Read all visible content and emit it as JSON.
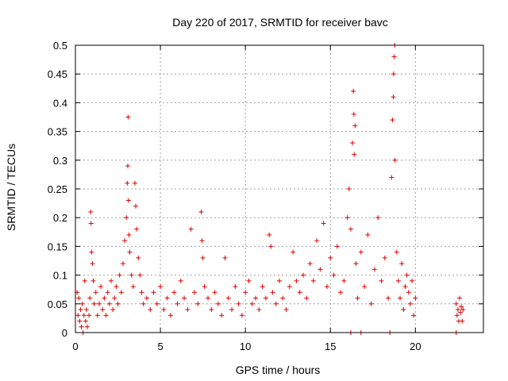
{
  "chart_data": {
    "type": "scatter",
    "title": "Day 220 of 2017, SRMTID for receiver bavc",
    "xlabel": "GPS time / hours",
    "ylabel": "SRMTID / TECUs",
    "xlim": [
      0,
      24
    ],
    "ylim": [
      0,
      0.5
    ],
    "xticks": [
      0,
      5,
      10,
      15,
      20
    ],
    "yticks": [
      0,
      0.05,
      0.1,
      0.15,
      0.2,
      0.25,
      0.3,
      0.35,
      0.4,
      0.45,
      0.5
    ],
    "xtick_labels": [
      "0",
      "5",
      "10",
      "15",
      "20"
    ],
    "ytick_labels": [
      "0",
      "0.05",
      "0.1",
      "0.15",
      "0.2",
      "0.25",
      "0.3",
      "0.35",
      "0.4",
      "0.45",
      "0.5"
    ],
    "grid": true,
    "marker": "+",
    "series": [
      {
        "name": "SRMTID",
        "color": "#e00000",
        "points": [
          [
            0.1,
            0.07
          ],
          [
            0.15,
            0.03
          ],
          [
            0.2,
            0.06
          ],
          [
            0.25,
            0.02
          ],
          [
            0.3,
            0.04
          ],
          [
            0.35,
            0.01
          ],
          [
            0.4,
            0.05
          ],
          [
            0.45,
            0.0
          ],
          [
            0.5,
            0.03
          ],
          [
            0.55,
            0.09
          ],
          [
            0.6,
            0.02
          ],
          [
            0.65,
            0.04
          ],
          [
            0.7,
            0.01
          ],
          [
            0.8,
            0.03
          ],
          [
            0.85,
            0.06
          ],
          [
            0.9,
            0.21
          ],
          [
            0.92,
            0.19
          ],
          [
            0.95,
            0.14
          ],
          [
            1.0,
            0.12
          ],
          [
            1.05,
            0.09
          ],
          [
            1.1,
            0.05
          ],
          [
            1.2,
            0.07
          ],
          [
            1.3,
            0.03
          ],
          [
            1.4,
            0.05
          ],
          [
            1.5,
            0.08
          ],
          [
            1.6,
            0.04
          ],
          [
            1.7,
            0.06
          ],
          [
            1.8,
            0.03
          ],
          [
            1.9,
            0.07
          ],
          [
            2.0,
            0.05
          ],
          [
            2.1,
            0.09
          ],
          [
            2.2,
            0.04
          ],
          [
            2.3,
            0.06
          ],
          [
            2.4,
            0.08
          ],
          [
            2.5,
            0.05
          ],
          [
            2.6,
            0.1
          ],
          [
            2.7,
            0.07
          ],
          [
            2.8,
            0.12
          ],
          [
            2.9,
            0.16
          ],
          [
            3.0,
            0.2
          ],
          [
            3.05,
            0.26
          ],
          [
            3.08,
            0.29
          ],
          [
            3.1,
            0.375
          ],
          [
            3.12,
            0.23
          ],
          [
            3.15,
            0.17
          ],
          [
            3.2,
            0.14
          ],
          [
            3.3,
            0.1
          ],
          [
            3.4,
            0.08
          ],
          [
            3.5,
            0.26
          ],
          [
            3.55,
            0.22
          ],
          [
            3.6,
            0.18
          ],
          [
            3.7,
            0.13
          ],
          [
            3.8,
            0.1
          ],
          [
            3.9,
            0.07
          ],
          [
            4.0,
            0.05
          ],
          [
            4.2,
            0.06
          ],
          [
            4.4,
            0.04
          ],
          [
            4.6,
            0.07
          ],
          [
            4.8,
            0.05
          ],
          [
            5.0,
            0.08
          ],
          [
            5.2,
            0.04
          ],
          [
            5.4,
            0.06
          ],
          [
            5.6,
            0.03
          ],
          [
            5.8,
            0.07
          ],
          [
            6.0,
            0.05
          ],
          [
            6.2,
            0.09
          ],
          [
            6.4,
            0.06
          ],
          [
            6.6,
            0.04
          ],
          [
            6.8,
            0.18
          ],
          [
            7.0,
            0.07
          ],
          [
            7.2,
            0.05
          ],
          [
            7.4,
            0.21
          ],
          [
            7.45,
            0.16
          ],
          [
            7.5,
            0.13
          ],
          [
            7.6,
            0.08
          ],
          [
            7.8,
            0.06
          ],
          [
            8.0,
            0.04
          ],
          [
            8.2,
            0.07
          ],
          [
            8.4,
            0.05
          ],
          [
            8.6,
            0.03
          ],
          [
            8.8,
            0.13
          ],
          [
            9.0,
            0.06
          ],
          [
            9.2,
            0.04
          ],
          [
            9.4,
            0.08
          ],
          [
            9.6,
            0.05
          ],
          [
            9.8,
            0.03
          ],
          [
            10.0,
            0.07
          ],
          [
            10.2,
            0.09
          ],
          [
            10.4,
            0.05
          ],
          [
            10.6,
            0.06
          ],
          [
            10.8,
            0.04
          ],
          [
            11.0,
            0.08
          ],
          [
            11.2,
            0.06
          ],
          [
            11.4,
            0.17
          ],
          [
            11.5,
            0.15
          ],
          [
            11.6,
            0.07
          ],
          [
            11.8,
            0.05
          ],
          [
            12.0,
            0.09
          ],
          [
            12.2,
            0.06
          ],
          [
            12.4,
            0.04
          ],
          [
            12.6,
            0.08
          ],
          [
            12.8,
            0.14
          ],
          [
            13.0,
            0.09
          ],
          [
            13.2,
            0.07
          ],
          [
            13.4,
            0.1
          ],
          [
            13.6,
            0.06
          ],
          [
            13.8,
            0.12
          ],
          [
            14.0,
            0.09
          ],
          [
            14.2,
            0.16
          ],
          [
            14.4,
            0.11
          ],
          [
            14.6,
            0.19
          ],
          [
            14.8,
            0.08
          ],
          [
            15.0,
            0.13
          ],
          [
            15.2,
            0.1
          ],
          [
            15.4,
            0.15
          ],
          [
            15.6,
            0.07
          ],
          [
            15.8,
            0.09
          ],
          [
            16.0,
            0.2
          ],
          [
            16.1,
            0.25
          ],
          [
            16.2,
            0.18
          ],
          [
            16.3,
            0.33
          ],
          [
            16.35,
            0.42
          ],
          [
            16.38,
            0.38
          ],
          [
            16.4,
            0.31
          ],
          [
            16.45,
            0.36
          ],
          [
            16.5,
            0.12
          ],
          [
            16.6,
            0.06
          ],
          [
            16.8,
            0.14
          ],
          [
            17.0,
            0.08
          ],
          [
            17.2,
            0.17
          ],
          [
            17.4,
            0.05
          ],
          [
            17.6,
            0.11
          ],
          [
            17.8,
            0.2
          ],
          [
            18.0,
            0.09
          ],
          [
            18.2,
            0.13
          ],
          [
            18.4,
            0.06
          ],
          [
            18.6,
            0.27
          ],
          [
            18.65,
            0.37
          ],
          [
            18.7,
            0.41
          ],
          [
            18.72,
            0.45
          ],
          [
            18.75,
            0.48
          ],
          [
            18.78,
            0.5
          ],
          [
            18.8,
            0.3
          ],
          [
            18.9,
            0.14
          ],
          [
            19.0,
            0.09
          ],
          [
            19.1,
            0.06
          ],
          [
            19.2,
            0.12
          ],
          [
            19.3,
            0.04
          ],
          [
            19.4,
            0.08
          ],
          [
            19.5,
            0.1
          ],
          [
            19.6,
            0.07
          ],
          [
            19.7,
            0.05
          ],
          [
            19.8,
            0.09
          ],
          [
            19.9,
            0.03
          ],
          [
            20.0,
            0.06
          ],
          [
            16.2,
            0.0
          ],
          [
            16.8,
            0.0
          ],
          [
            18.5,
            0.0
          ],
          [
            22.4,
            0.05
          ],
          [
            22.45,
            0.03
          ],
          [
            22.5,
            0.04
          ],
          [
            22.55,
            0.02
          ],
          [
            22.6,
            0.06
          ],
          [
            22.65,
            0.035
          ],
          [
            22.7,
            0.045
          ],
          [
            22.75,
            0.02
          ],
          [
            22.8,
            0.04
          ],
          [
            22.4,
            0.0
          ]
        ]
      }
    ]
  }
}
